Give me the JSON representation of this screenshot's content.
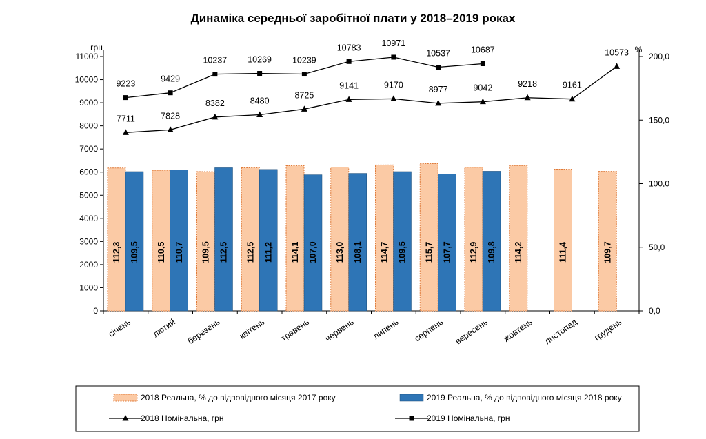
{
  "chart_data": {
    "type": "bar",
    "title": "Динаміка середньої заробітної плати у 2018–2019 роках",
    "y_left_unit": "грн",
    "y_right_unit": "%",
    "ylim_left": [
      0,
      11000
    ],
    "ylim_right": [
      0,
      200
    ],
    "y_left_ticks": [
      "0",
      "1000",
      "2000",
      "3000",
      "4000",
      "5000",
      "6000",
      "7000",
      "8000",
      "9000",
      "10000",
      "11000"
    ],
    "y_right_ticks": [
      "0,0",
      "50,0",
      "100,0",
      "150,0",
      "200,0"
    ],
    "categories": [
      "січень",
      "лютий",
      "березень",
      "квітень",
      "травень",
      "червень",
      "липень",
      "серпень",
      "вересень",
      "жовтень",
      "листопад",
      "грудень"
    ],
    "series": [
      {
        "name": "2018 Реальна, % до відповідного місяця 2017 року",
        "kind": "bar",
        "axis": "right",
        "color": "#fbcaa5",
        "values": [
          112.3,
          110.5,
          109.5,
          112.5,
          114.1,
          113.0,
          114.7,
          115.7,
          112.9,
          114.2,
          111.4,
          109.7
        ],
        "labels": [
          "112,3",
          "110,5",
          "109,5",
          "112,5",
          "114,1",
          "113,0",
          "114,7",
          "115,7",
          "112,9",
          "114,2",
          "111,4",
          "109,7"
        ]
      },
      {
        "name": "2019 Реальна, % до відповідного місяця 2018 року",
        "kind": "bar",
        "axis": "right",
        "color": "#2e75b6",
        "values": [
          109.5,
          110.7,
          112.5,
          111.2,
          107.0,
          108.1,
          109.5,
          107.7,
          109.8,
          null,
          null,
          null
        ],
        "labels": [
          "109,5",
          "110,7",
          "112,5",
          "111,2",
          "107,0",
          "108,1",
          "109,5",
          "107,7",
          "109,8",
          null,
          null,
          null
        ]
      },
      {
        "name": "2018 Номінальна, грн",
        "kind": "line",
        "axis": "left",
        "marker": "triangle",
        "values": [
          7711,
          7828,
          8382,
          8480,
          8725,
          9141,
          9170,
          8977,
          9042,
          9218,
          9161,
          10573
        ],
        "labels": [
          "7711",
          "7828",
          "8382",
          "8480",
          "8725",
          "9141",
          "9170",
          "8977",
          "9042",
          "9218",
          "9161",
          "10573"
        ]
      },
      {
        "name": "2019 Номінальна, грн",
        "kind": "line",
        "axis": "left",
        "marker": "square",
        "values": [
          9223,
          9429,
          10237,
          10269,
          10239,
          10783,
          10971,
          10537,
          10687,
          null,
          null,
          null
        ],
        "labels": [
          "9223",
          "9429",
          "10237",
          "10269",
          "10239",
          "10783",
          "10971",
          "10537",
          "10687",
          null,
          null,
          null
        ]
      }
    ],
    "legend": "bottom"
  }
}
